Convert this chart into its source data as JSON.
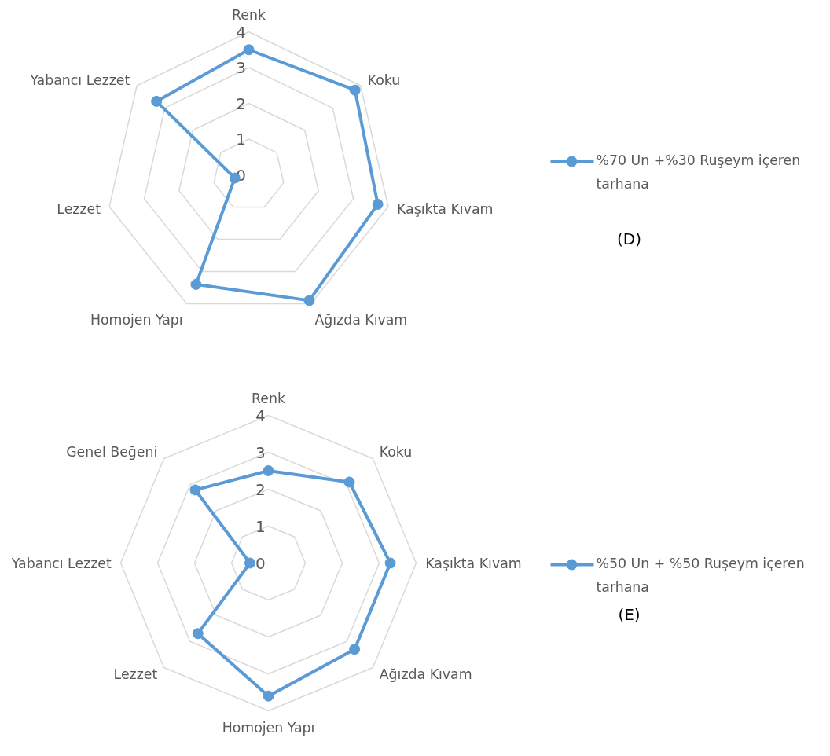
{
  "chart_data": [
    {
      "type": "radar",
      "categories": [
        "Renk",
        "Koku",
        "Kaşıkta Kıvam",
        "Ağızda Kıvam",
        "Homojen Yapı",
        "Lezzet",
        "Yabancı Lezzet"
      ],
      "series": [
        {
          "name": "%70 Un +%30 Ruşeym içeren tarhana",
          "color": "#5b9bd5",
          "values": [
            3.5,
            3.8,
            3.7,
            3.9,
            3.4,
            0.4,
            3.3
          ]
        }
      ],
      "ylim": [
        0,
        4
      ],
      "yticks": [
        0,
        1,
        2,
        3,
        4
      ],
      "grid": true,
      "legend": "right",
      "marker": "circle",
      "annotations": [
        "(D)"
      ]
    },
    {
      "type": "radar",
      "categories": [
        "Renk",
        "Koku",
        "Kaşıkta Kıvam",
        "Ağızda Kıvam",
        "Homojen Yapı",
        "Lezzet",
        "Yabancı Lezzet",
        "Genel Beğeni"
      ],
      "series": [
        {
          "name": "%50 Un + %50 Ruşeym içeren tarhana",
          "color": "#5b9bd5",
          "values": [
            2.5,
            3.1,
            3.3,
            3.3,
            3.6,
            2.7,
            0.5,
            2.8
          ]
        }
      ],
      "ylim": [
        0,
        4
      ],
      "yticks": [
        0,
        1,
        2,
        3,
        4
      ],
      "grid": true,
      "legend": "right",
      "marker": "circle",
      "annotations": [
        "(E)"
      ]
    }
  ]
}
